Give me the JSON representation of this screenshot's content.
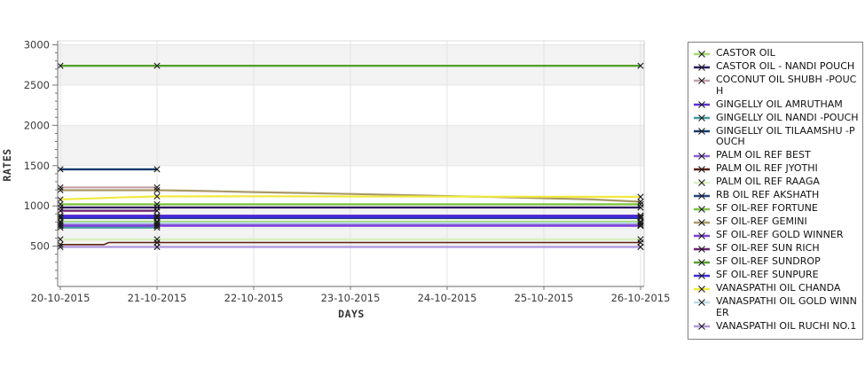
{
  "chart_data": {
    "type": "line",
    "title": "",
    "xlabel": "DAYS",
    "ylabel": "RATES",
    "x_categories": [
      "20-10-2015",
      "21-10-2015",
      "22-10-2015",
      "23-10-2015",
      "24-10-2015",
      "25-10-2015",
      "26-10-2015"
    ],
    "ylim": [
      0,
      3050
    ],
    "yticks": [
      500,
      1000,
      1500,
      2000,
      2500,
      3000
    ],
    "grid": true,
    "legend_position": "right",
    "marker_symbol": "x",
    "marker_color": "#1a1a1a",
    "band_color": "#f3f3f3",
    "grid_color": "#e3e3e3",
    "axis_color": "#888888",
    "frame_color": "#c8c8c8",
    "series": [
      {
        "name": "CASTOR OIL",
        "color": "#a7dc6d",
        "width": 2,
        "points": [
          [
            0,
            805
          ],
          [
            6,
            805
          ]
        ],
        "markers": [
          0,
          1,
          6
        ]
      },
      {
        "name": "CASTOR OIL - NANDI POUCH",
        "color": "#2d1a63",
        "width": 2.2,
        "points": [
          [
            0,
            980
          ],
          [
            6,
            980
          ]
        ],
        "markers": [
          0,
          1,
          6
        ]
      },
      {
        "name": "COCONUT OIL SHUBH -POUCH",
        "color": "#c2a0a8",
        "width": 2.2,
        "points": [
          [
            0,
            1230
          ],
          [
            1,
            1230
          ]
        ],
        "markers": [
          0,
          1
        ]
      },
      {
        "name": "GINGELLY OIL AMRUTHAM",
        "color": "#5b2fd4",
        "width": 2.2,
        "points": [
          [
            0,
            880
          ],
          [
            6,
            880
          ]
        ],
        "markers": [
          0,
          1,
          6
        ]
      },
      {
        "name": "GINGELLY OIL NANDI -POUCH",
        "color": "#41999b",
        "width": 2.2,
        "points": [
          [
            0,
            730
          ],
          [
            1,
            730
          ]
        ],
        "markers": [
          0,
          1
        ]
      },
      {
        "name": "GINGELLY OIL TILAAMSHU -POUCH",
        "color": "#173a6d",
        "width": 2.4,
        "points": [
          [
            0,
            1455
          ],
          [
            1,
            1455
          ]
        ],
        "markers": [
          0,
          1
        ]
      },
      {
        "name": "PALM OIL REF BEST",
        "color": "#8a5ed8",
        "width": 2.2,
        "points": [
          [
            0,
            765
          ],
          [
            6,
            765
          ]
        ],
        "markers": [
          0,
          1,
          6
        ]
      },
      {
        "name": "PALM OIL REF JYOTHI",
        "color": "#5c2012",
        "width": 1.6,
        "points": [
          [
            0,
            520
          ],
          [
            0.45,
            520
          ],
          [
            0.5,
            545
          ],
          [
            6,
            545
          ]
        ],
        "markers": [
          0,
          1,
          6
        ]
      },
      {
        "name": "PALM OIL REF RAAGA",
        "color": "#d9efc0",
        "width": 2.6,
        "points": [
          [
            0,
            585
          ],
          [
            6,
            585
          ]
        ],
        "markers": [
          0,
          1,
          6
        ]
      },
      {
        "name": "RB OIL REF AKSHATH",
        "color": "#27427f",
        "width": 2,
        "points": [
          [
            0,
            848
          ],
          [
            6,
            848
          ]
        ],
        "markers": [
          0,
          1,
          6
        ]
      },
      {
        "name": "SF OIL-REF FORTUNE",
        "color": "#7cc53d",
        "width": 2.2,
        "points": [
          [
            0,
            1020
          ],
          [
            6,
            1020
          ]
        ],
        "markers": [
          0,
          1,
          6
        ]
      },
      {
        "name": "SF OIL-REF GEMINI",
        "color": "#a89968",
        "width": 2.2,
        "points": [
          [
            0,
            1195
          ],
          [
            1,
            1195
          ],
          [
            1.5,
            1185
          ],
          [
            2,
            1172
          ],
          [
            2.5,
            1160
          ],
          [
            3,
            1148
          ],
          [
            3.5,
            1136
          ],
          [
            4,
            1122
          ],
          [
            4.5,
            1110
          ],
          [
            5,
            1096
          ],
          [
            5.5,
            1080
          ],
          [
            6,
            1052
          ]
        ],
        "markers": [
          0,
          1,
          6
        ]
      },
      {
        "name": "SF OIL-REF GOLD WINNER",
        "color": "#7a3ed8",
        "width": 2,
        "points": [
          [
            0,
            752
          ],
          [
            6,
            752
          ]
        ],
        "markers": [
          0,
          1,
          6
        ]
      },
      {
        "name": "SF OIL-REF SUN RICH",
        "color": "#6d2070",
        "width": 2.2,
        "points": [
          [
            0,
            940
          ],
          [
            1,
            940
          ]
        ],
        "markers": [
          0,
          1
        ]
      },
      {
        "name": "SF OIL-REF SUNDROP",
        "color": "#55a02e",
        "width": 2.4,
        "points": [
          [
            0,
            2740
          ],
          [
            6,
            2740
          ]
        ],
        "markers": [
          0,
          1,
          6
        ]
      },
      {
        "name": "SF OIL-REF SUNPURE",
        "color": "#3c2ad4",
        "width": 2.2,
        "points": [
          [
            0,
            860
          ],
          [
            6,
            860
          ]
        ],
        "markers": [
          0,
          1,
          6
        ]
      },
      {
        "name": "VANASPATHI OIL CHANDA",
        "color": "#f0e93e",
        "width": 2.2,
        "points": [
          [
            0,
            1080
          ],
          [
            0.3,
            1092
          ],
          [
            0.6,
            1104
          ],
          [
            1,
            1118
          ],
          [
            2,
            1120
          ],
          [
            3,
            1118
          ],
          [
            4,
            1115
          ],
          [
            5,
            1114
          ],
          [
            6,
            1112
          ]
        ],
        "markers": [
          0,
          1,
          6
        ]
      },
      {
        "name": "VANASPATHI OIL GOLD WINNER",
        "color": "#badbe8",
        "width": 2,
        "points": [
          [
            0,
            788
          ],
          [
            6,
            788
          ]
        ],
        "markers": [
          0,
          1,
          6
        ]
      },
      {
        "name": "VANASPATHI OIL RUCHI NO.1",
        "color": "#b198de",
        "width": 2.2,
        "points": [
          [
            0,
            490
          ],
          [
            6,
            490
          ]
        ],
        "markers": [
          0,
          1,
          6
        ]
      }
    ]
  }
}
